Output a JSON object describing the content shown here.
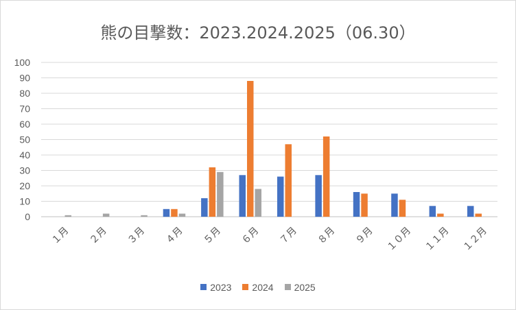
{
  "chart_data": {
    "type": "bar",
    "title": "熊の目撃数：2023.2024.2025（06.30）",
    "categories": [
      "１月",
      "２月",
      "３月",
      "４月",
      "５月",
      "６月",
      "７月",
      "８月",
      "９月",
      "１０月",
      "１１月",
      "１２月"
    ],
    "series": [
      {
        "name": "2023",
        "color": "#4472c4",
        "values": [
          0,
          0,
          0,
          5,
          12,
          27,
          26,
          27,
          16,
          15,
          7,
          7
        ]
      },
      {
        "name": "2024",
        "color": "#ed7d31",
        "values": [
          0,
          0,
          0,
          5,
          32,
          88,
          47,
          52,
          15,
          11,
          2,
          2
        ]
      },
      {
        "name": "2025",
        "color": "#a5a5a5",
        "values": [
          1,
          2,
          1,
          2,
          29,
          18,
          0,
          0,
          0,
          0,
          0,
          0
        ]
      }
    ],
    "ylim": [
      0,
      100
    ],
    "yticks": [
      0,
      10,
      20,
      30,
      40,
      50,
      60,
      70,
      80,
      90,
      100
    ],
    "grid": true,
    "legend_position": "bottom"
  }
}
